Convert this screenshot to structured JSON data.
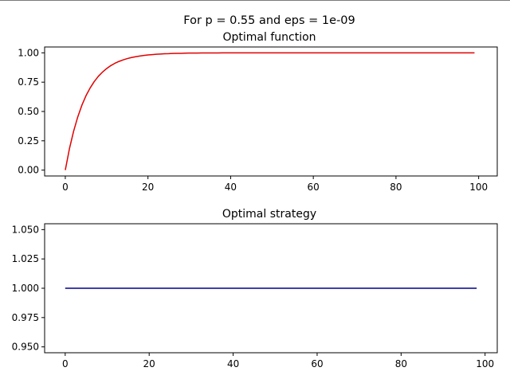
{
  "figure": {
    "suptitle": "For p = 0.55 and eps = 1e-09"
  },
  "chart_data": [
    {
      "type": "line",
      "title": "Optimal function",
      "xlabel": "",
      "ylabel": "",
      "xlim": [
        -5,
        104.5
      ],
      "ylim": [
        -0.05,
        1.05
      ],
      "xticks": [
        0,
        20,
        40,
        60,
        80,
        100
      ],
      "xtick_labels": [
        "0",
        "20",
        "40",
        "60",
        "80",
        "100"
      ],
      "yticks": [
        0.0,
        0.25,
        0.5,
        0.75,
        1.0
      ],
      "ytick_labels": [
        "0.00",
        "0.25",
        "0.50",
        "0.75",
        "1.00"
      ],
      "grid": false,
      "series": [
        {
          "color": "#e00000",
          "x": [
            0,
            1,
            2,
            3,
            4,
            5,
            6,
            7,
            8,
            9,
            10,
            11,
            12,
            13,
            14,
            15,
            16,
            17,
            18,
            19,
            20,
            21,
            22,
            23,
            24,
            25,
            26,
            27,
            28,
            29,
            30,
            31,
            32,
            33,
            34,
            35,
            36,
            37,
            38,
            39,
            40,
            41,
            42,
            43,
            44,
            45,
            46,
            47,
            48,
            49,
            50,
            51,
            52,
            53,
            54,
            55,
            56,
            57,
            58,
            59,
            60,
            61,
            62,
            63,
            64,
            65,
            66,
            67,
            68,
            69,
            70,
            71,
            72,
            73,
            74,
            75,
            76,
            77,
            78,
            79,
            80,
            81,
            82,
            83,
            84,
            85,
            86,
            87,
            88,
            89,
            90,
            91,
            92,
            93,
            94,
            95,
            96,
            97,
            98,
            99
          ],
          "y": [
            0.0,
            0.182,
            0.33,
            0.452,
            0.552,
            0.634,
            0.7,
            0.755,
            0.8,
            0.836,
            0.866,
            0.891,
            0.911,
            0.927,
            0.94,
            0.951,
            0.96,
            0.967,
            0.973,
            0.978,
            0.982,
            0.985,
            0.988,
            0.99,
            0.992,
            0.993,
            0.995,
            0.996,
            0.996,
            0.997,
            0.998,
            0.998,
            0.998,
            0.999,
            0.999,
            0.999,
            0.999,
            0.999,
            1.0,
            1.0,
            1.0,
            1.0,
            1.0,
            1.0,
            1.0,
            1.0,
            1.0,
            1.0,
            1.0,
            1.0,
            1.0,
            1.0,
            1.0,
            1.0,
            1.0,
            1.0,
            1.0,
            1.0,
            1.0,
            1.0,
            1.0,
            1.0,
            1.0,
            1.0,
            1.0,
            1.0,
            1.0,
            1.0,
            1.0,
            1.0,
            1.0,
            1.0,
            1.0,
            1.0,
            1.0,
            1.0,
            1.0,
            1.0,
            1.0,
            1.0,
            1.0,
            1.0,
            1.0,
            1.0,
            1.0,
            1.0,
            1.0,
            1.0,
            1.0,
            1.0,
            1.0,
            1.0,
            1.0,
            1.0,
            1.0,
            1.0,
            1.0,
            1.0,
            1.0,
            1.0
          ]
        }
      ]
    },
    {
      "type": "line",
      "title": "Optimal strategy",
      "xlabel": "",
      "ylabel": "",
      "xlim": [
        -4.9,
        102.9
      ],
      "ylim": [
        0.945,
        1.055
      ],
      "xticks": [
        0,
        20,
        40,
        60,
        80,
        100
      ],
      "xtick_labels": [
        "0",
        "20",
        "40",
        "60",
        "80",
        "100"
      ],
      "yticks": [
        0.95,
        0.975,
        1.0,
        1.025,
        1.05
      ],
      "ytick_labels": [
        "0.950",
        "0.975",
        "1.000",
        "1.025",
        "1.050"
      ],
      "grid": false,
      "series": [
        {
          "color": "#00008b",
          "x": [
            0,
            98
          ],
          "y": [
            1.0,
            1.0
          ]
        }
      ]
    }
  ]
}
